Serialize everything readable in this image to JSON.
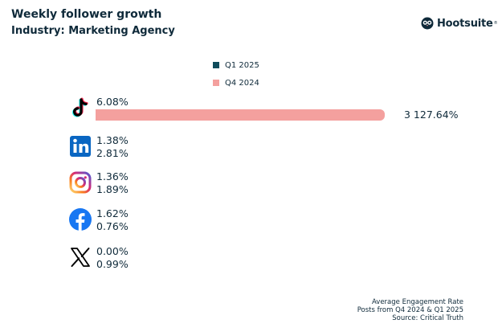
{
  "header": {
    "title": "Weekly follower growth",
    "subtitle": "Industry: Marketing Agency"
  },
  "brand": {
    "name": "Hootsuite",
    "reg": "®"
  },
  "colors": {
    "q1_2025": "#0f4c5c",
    "q4_2024": "#f4a09e",
    "text": "#0f2a3a"
  },
  "footer": {
    "line1": "Average Engagement Rate",
    "line2": "Posts from Q4 2024 & Q1 2025",
    "line3": "Source: Critical Truth"
  },
  "chart_data": {
    "type": "bar",
    "categories": [
      "TikTok",
      "LinkedIn",
      "Instagram",
      "Facebook",
      "X"
    ],
    "icons": [
      "tiktok-icon",
      "linkedin-icon",
      "instagram-icon",
      "facebook-icon",
      "x-icon"
    ],
    "series": [
      {
        "name": "Q1 2025",
        "values": [
          6.08,
          1.38,
          1.36,
          1.62,
          0.0
        ],
        "labels": [
          "6.08%",
          "1.38%",
          "1.36%",
          "1.62%",
          "0.00%"
        ]
      },
      {
        "name": "Q4 2024",
        "values": [
          3127.64,
          2.81,
          1.89,
          0.76,
          0.99
        ],
        "labels": [
          "3 127.64%",
          "2.81%",
          "1.89%",
          "0.76%",
          "0.99%"
        ]
      }
    ],
    "legend_position": "top-center",
    "grid": false,
    "xlabel": "",
    "ylabel": ""
  }
}
